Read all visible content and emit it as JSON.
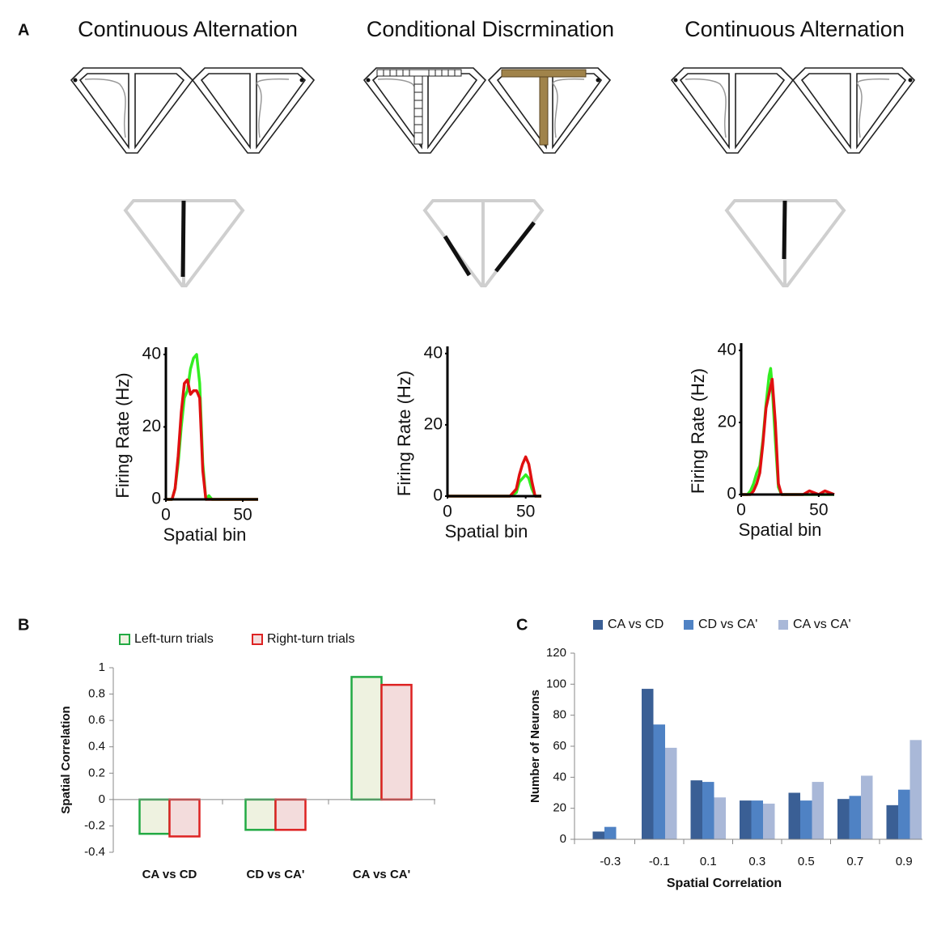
{
  "panel_labels": [
    "A",
    "B",
    "C"
  ],
  "panel_titles": [
    "Continuous Alternation",
    "Conditional Discrmination",
    "Continuous Alternation"
  ],
  "chart_data": [
    {
      "type": "line",
      "xlabel": "Spatial bin",
      "ylabel": "Firing Rate (Hz)",
      "xlim": [
        0,
        60
      ],
      "ylim": [
        0,
        42
      ],
      "xticks": [
        0,
        50
      ],
      "yticks": [
        0,
        20,
        40
      ],
      "x": [
        0,
        4,
        6,
        8,
        10,
        12,
        14,
        16,
        18,
        20,
        22,
        24,
        26,
        28,
        30,
        40,
        50,
        60
      ],
      "series": [
        {
          "color": "#33ee22",
          "values": [
            0,
            0,
            3,
            10,
            20,
            28,
            30,
            36,
            39,
            40,
            32,
            10,
            0,
            1,
            0,
            0,
            0,
            0
          ]
        },
        {
          "color": "#e01010",
          "values": [
            0,
            0,
            3,
            12,
            24,
            32,
            33,
            29,
            30,
            30,
            28,
            8,
            0,
            0,
            0,
            0,
            0,
            0
          ]
        }
      ]
    },
    {
      "type": "line",
      "xlabel": "Spatial bin",
      "ylabel": "Firing Rate (Hz)",
      "xlim": [
        0,
        60
      ],
      "ylim": [
        0,
        42
      ],
      "xticks": [
        0,
        50
      ],
      "yticks": [
        0,
        20,
        40
      ],
      "x": [
        0,
        10,
        20,
        30,
        40,
        44,
        46,
        48,
        50,
        52,
        54,
        56,
        60
      ],
      "series": [
        {
          "color": "#33ee22",
          "values": [
            0,
            0,
            0,
            0,
            0,
            1,
            4,
            5,
            6,
            5,
            2,
            0,
            0
          ]
        },
        {
          "color": "#e01010",
          "values": [
            0,
            0,
            0,
            0,
            0,
            2,
            6,
            9,
            11,
            9,
            4,
            0,
            0
          ]
        }
      ]
    },
    {
      "type": "line",
      "xlabel": "Spatial bin",
      "ylabel": "Firing Rate (Hz)",
      "xlim": [
        0,
        60
      ],
      "ylim": [
        0,
        42
      ],
      "xticks": [
        0,
        50
      ],
      "yticks": [
        0,
        20,
        40
      ],
      "x": [
        0,
        4,
        6,
        8,
        10,
        12,
        14,
        16,
        18,
        19,
        20,
        22,
        24,
        26,
        30,
        40,
        44,
        50,
        54,
        60
      ],
      "series": [
        {
          "color": "#33ee22",
          "values": [
            0,
            0,
            1,
            3,
            6,
            8,
            15,
            25,
            33,
            35,
            30,
            15,
            2,
            0,
            0,
            0,
            0,
            0,
            0,
            0
          ]
        },
        {
          "color": "#e01010",
          "values": [
            0,
            0,
            0,
            1,
            3,
            6,
            14,
            24,
            28,
            30,
            32,
            20,
            3,
            0,
            0,
            0,
            1,
            0,
            1,
            0
          ]
        }
      ]
    },
    {
      "type": "bar",
      "ylabel": "Spatial Correlation",
      "ylim": [
        -0.4,
        1
      ],
      "yticks": [
        -0.4,
        -0.2,
        0,
        0.2,
        0.4,
        0.6,
        0.8,
        1
      ],
      "categories": [
        "CA vs CD",
        "CD vs CA'",
        "CA vs CA'"
      ],
      "series": [
        {
          "name": "Left-turn trials",
          "color": "#eef2e0",
          "edgecolor": "#22aa44",
          "values": [
            -0.26,
            -0.23,
            0.93
          ]
        },
        {
          "name": "Right-turn trials",
          "color": "#f3dcdc",
          "edgecolor": "#dd2222",
          "values": [
            -0.28,
            -0.23,
            0.87
          ]
        }
      ]
    },
    {
      "type": "bar",
      "xlabel": "Spatial Correlation",
      "ylabel": "Number of Neurons",
      "ylim": [
        0,
        120
      ],
      "yticks": [
        0,
        20,
        40,
        60,
        80,
        100,
        120
      ],
      "categories": [
        "-0.3",
        "-0.1",
        "0.1",
        "0.3",
        "0.5",
        "0.7",
        "0.9"
      ],
      "series": [
        {
          "name": "CA vs CD",
          "color": "#3a5f95",
          "values": [
            5,
            97,
            38,
            25,
            30,
            26,
            22
          ]
        },
        {
          "name": "CD vs CA'",
          "color": "#4f82c4",
          "values": [
            8,
            74,
            37,
            25,
            25,
            28,
            32
          ]
        },
        {
          "name": "CA vs CA'",
          "color": "#a9b8d8",
          "values": [
            0,
            59,
            27,
            23,
            37,
            41,
            64
          ]
        }
      ]
    }
  ]
}
